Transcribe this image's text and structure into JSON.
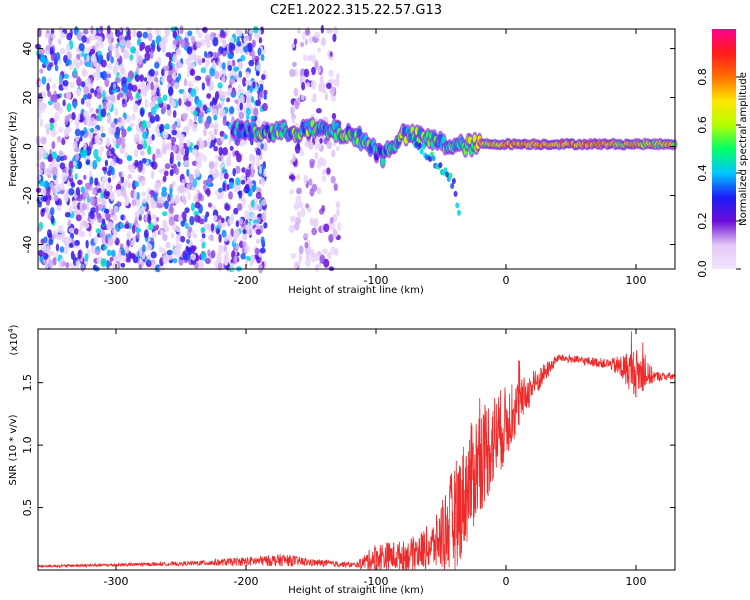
{
  "title": "C2E1.2022.315.22.57.G13",
  "chart_data": [
    {
      "type": "heatmap",
      "name": "spectrogram",
      "xlabel": "Height of straight line (km)",
      "ylabel": "Frequency (Hz)",
      "xlim": [
        -360,
        130
      ],
      "ylim": [
        -50,
        48
      ],
      "xticks": [
        -300,
        -200,
        -100,
        0,
        100
      ],
      "yticks": [
        -40,
        -20,
        0,
        20,
        40
      ],
      "colorbar": {
        "label": "Normalized spectral amplitude",
        "range": [
          0,
          1
        ],
        "ticks": [
          0.0,
          0.2,
          0.4,
          0.6,
          0.8
        ],
        "colors": [
          "#f2e6fb",
          "#e3c8f7",
          "#6a0dd8",
          "#1d1df5",
          "#00c8ff",
          "#00ff66",
          "#b4ff00",
          "#ffe600",
          "#ff7000",
          "#ff1a1a",
          "#ff0090"
        ]
      },
      "noise_regions": [
        {
          "x_range": [
            -360,
            -185
          ],
          "y_range": [
            -50,
            48
          ],
          "amplitude": 0.2
        },
        {
          "x_range": [
            -165,
            -128
          ],
          "y_range": [
            -50,
            48
          ],
          "amplitude": 0.1
        }
      ],
      "signal_track": [
        {
          "x": -210,
          "freq": 7,
          "amplitude": 0.35
        },
        {
          "x": -190,
          "freq": 6,
          "amplitude": 0.45
        },
        {
          "x": -170,
          "freq": 6,
          "amplitude": 0.5
        },
        {
          "x": -150,
          "freq": 7,
          "amplitude": 0.5
        },
        {
          "x": -130,
          "freq": 6,
          "amplitude": 0.5
        },
        {
          "x": -110,
          "freq": 3,
          "amplitude": 0.45
        },
        {
          "x": -95,
          "freq": -4,
          "amplitude": 0.4
        },
        {
          "x": -80,
          "freq": 5,
          "amplitude": 0.55
        },
        {
          "x": -60,
          "freq": 3,
          "amplitude": 0.55
        },
        {
          "x": -40,
          "freq": 0,
          "amplitude": 0.5
        },
        {
          "x": -20,
          "freq": 1,
          "amplitude": 0.85
        },
        {
          "x": 0,
          "freq": 1,
          "amplitude": 0.9
        },
        {
          "x": 30,
          "freq": 1,
          "amplitude": 0.95
        },
        {
          "x": 60,
          "freq": 1,
          "amplitude": 0.95
        },
        {
          "x": 90,
          "freq": 1,
          "amplitude": 0.85
        },
        {
          "x": 130,
          "freq": 1,
          "amplitude": 0.8
        }
      ],
      "side_branch": [
        {
          "x": -70,
          "freq": 2
        },
        {
          "x": -55,
          "freq": -6
        },
        {
          "x": -40,
          "freq": -15
        },
        {
          "x": -35,
          "freq": -30
        }
      ]
    },
    {
      "type": "line",
      "name": "snr",
      "xlabel": "Height of straight line (km)",
      "ylabel": "SNR (10 * v/v)",
      "y_scale_label": "(x10^4)",
      "y_scale_base": "(x10",
      "y_scale_exp": "4",
      "y_scale_close": ")",
      "xlim": [
        -360,
        130
      ],
      "ylim": [
        0,
        1.93
      ],
      "xticks": [
        -300,
        -200,
        -100,
        0,
        100
      ],
      "yticks": [
        0.5,
        1.0,
        1.5
      ],
      "ytick_labels": [
        "0.5",
        "1.0",
        "1.5"
      ],
      "color": "#ee2a2a",
      "series": [
        {
          "name": "SNR",
          "envelope": [
            {
              "x": -360,
              "base": 0.03,
              "noise": 0.01
            },
            {
              "x": -250,
              "base": 0.05,
              "noise": 0.015
            },
            {
              "x": -170,
              "base": 0.08,
              "noise": 0.05
            },
            {
              "x": -150,
              "base": 0.06,
              "noise": 0.03
            },
            {
              "x": -115,
              "base": 0.04,
              "noise": 0.02
            },
            {
              "x": -100,
              "base": 0.1,
              "noise": 0.12
            },
            {
              "x": -75,
              "base": 0.12,
              "noise": 0.12
            },
            {
              "x": -55,
              "base": 0.2,
              "noise": 0.2
            },
            {
              "x": -40,
              "base": 0.4,
              "noise": 0.45
            },
            {
              "x": -20,
              "base": 0.9,
              "noise": 0.45
            },
            {
              "x": -5,
              "base": 1.1,
              "noise": 0.35
            },
            {
              "x": 15,
              "base": 1.4,
              "noise": 0.15
            },
            {
              "x": 40,
              "base": 1.7,
              "noise": 0.03
            },
            {
              "x": 80,
              "base": 1.65,
              "noise": 0.04
            },
            {
              "x": 100,
              "base": 1.58,
              "noise": 0.2
            },
            {
              "x": 115,
              "base": 1.55,
              "noise": 0.04
            },
            {
              "x": 130,
              "base": 1.55,
              "noise": 0.03
            }
          ]
        }
      ]
    }
  ]
}
